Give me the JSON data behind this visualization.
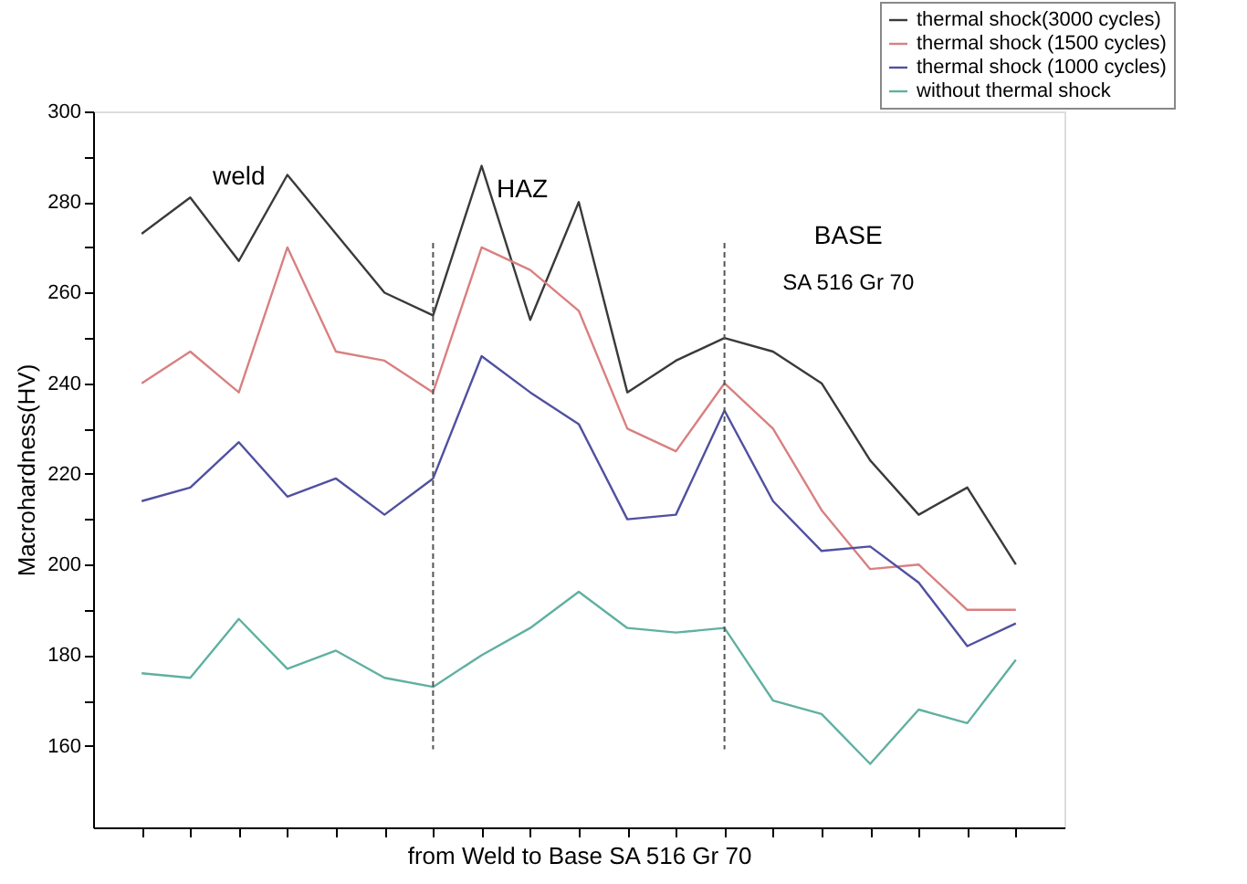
{
  "chart_data": {
    "type": "line",
    "xlabel": "from Weld to Base SA 516 Gr 70",
    "ylabel": "Macrohardness(HV)",
    "categories": [
      null,
      null,
      null,
      null,
      null,
      null,
      null,
      null,
      null,
      null,
      null,
      null,
      null,
      null,
      null,
      null,
      null,
      null,
      null
    ],
    "series": [
      {
        "name": "thermal shock(3000 cycles)",
        "color": "#3a3a3a",
        "values": [
          273,
          281,
          267,
          286,
          273,
          260,
          255,
          288,
          254,
          280,
          238,
          245,
          250,
          247,
          240,
          223,
          211,
          217,
          200
        ]
      },
      {
        "name": "thermal shock (1500 cycles)",
        "color": "#d98080",
        "values": [
          240,
          247,
          238,
          270,
          247,
          245,
          238,
          270,
          265,
          256,
          230,
          225,
          240,
          230,
          212,
          199,
          200,
          190,
          190
        ]
      },
      {
        "name": "thermal shock (1000 cycles)",
        "color": "#5050a0",
        "values": [
          214,
          217,
          227,
          215,
          219,
          211,
          219,
          246,
          238,
          231,
          210,
          211,
          234,
          214,
          203,
          204,
          196,
          182,
          187
        ]
      },
      {
        "name": "without thermal shock",
        "color": "#60b0a0",
        "values": [
          176,
          175,
          188,
          177,
          181,
          175,
          173,
          180,
          186,
          194,
          186,
          185,
          186,
          170,
          167,
          156,
          168,
          165,
          179
        ]
      }
    ],
    "ylim": [
      142,
      300
    ],
    "yticks": [
      160,
      {
        "value": 170,
        "label": null
      },
      180,
      {
        "value": 190,
        "label": null
      },
      200,
      {
        "value": 210,
        "label": null
      },
      220,
      {
        "value": 230,
        "label": null
      },
      240,
      {
        "value": 250,
        "label": null
      },
      260,
      {
        "value": 270,
        "label": null
      },
      280,
      {
        "value": 290,
        "label": null
      },
      300
    ],
    "tick_labels": "y",
    "annotations": [
      "weld",
      "HAZ",
      "BASE",
      "SA 516 Gr 70"
    ],
    "legend": "top right",
    "grid": false,
    "line_style": "solid",
    "marker": "none"
  }
}
